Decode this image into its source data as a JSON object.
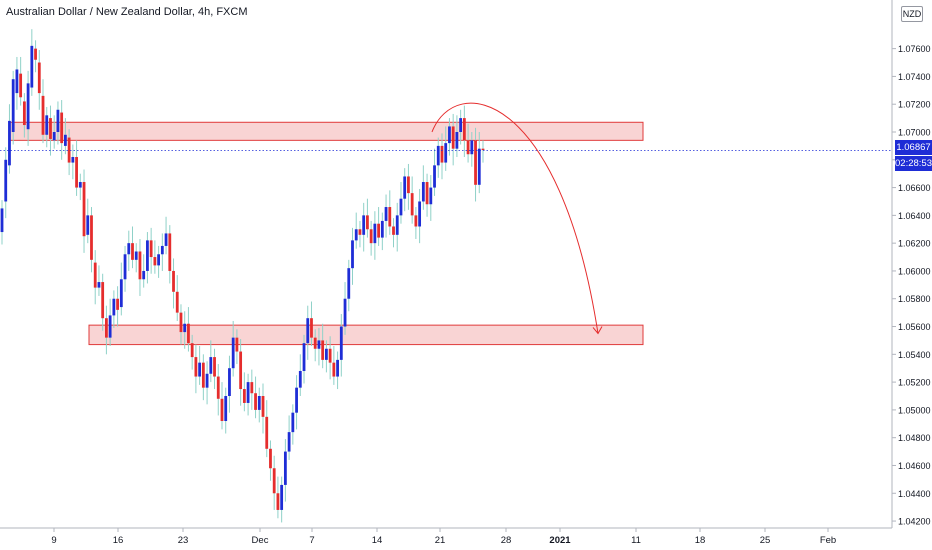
{
  "header": {
    "title": "Australian Dollar / New Zealand Dollar, 4h, FXCM",
    "currency": "NZD"
  },
  "price_label": {
    "price": "1.06867",
    "countdown": "02:28:53"
  },
  "colors": {
    "up": "#1e2dd6",
    "down": "#e52d2d",
    "wick": "#8fd1c8",
    "zone_fill": "#f7c6c6",
    "zone_stroke": "#e03a3a",
    "arrow": "#e52d2d",
    "price_line": "#1e2dd6"
  },
  "chart_data": {
    "type": "candlestick",
    "title": "Australian Dollar / New Zealand Dollar, 4h, FXCM",
    "y_axis": {
      "range": [
        1.0415,
        1.0795
      ],
      "ticks": [
        "1.07600",
        "1.07400",
        "1.07200",
        "1.07000",
        "1.06800",
        "1.06600",
        "1.06400",
        "1.06200",
        "1.06000",
        "1.05800",
        "1.05600",
        "1.05400",
        "1.05200",
        "1.05000",
        "1.04800",
        "1.04600",
        "1.04400",
        "1.04200"
      ]
    },
    "x_axis": {
      "ticks": [
        "9",
        "16",
        "23",
        "Dec",
        "7",
        "14",
        "21",
        "28",
        "2021",
        "11",
        "18",
        "25",
        "Feb"
      ]
    },
    "grid": false,
    "zones": [
      {
        "name": "resistance",
        "from": 1.0694,
        "to": 1.0707
      },
      {
        "name": "support",
        "from": 1.0547,
        "to": 1.0561
      }
    ],
    "arrow": {
      "from": 1.07,
      "peak": 1.0727,
      "to": 1.0555
    },
    "path": [
      [
        1.0628,
        1.0645
      ],
      [
        1.065,
        1.068
      ],
      [
        1.0676,
        1.0708
      ],
      [
        1.07,
        1.0738
      ],
      [
        1.0728,
        1.0745
      ],
      [
        1.0742,
        1.0725
      ],
      [
        1.0722,
        1.0705
      ],
      [
        1.0702,
        1.0735
      ],
      [
        1.0732,
        1.0762
      ],
      [
        1.076,
        1.0752
      ],
      [
        1.075,
        1.0728
      ],
      [
        1.0726,
        1.0698
      ],
      [
        1.0698,
        1.0712
      ],
      [
        1.071,
        1.0695
      ],
      [
        1.0694,
        1.07
      ],
      [
        1.07,
        1.0716
      ],
      [
        1.0714,
        1.0692
      ],
      [
        1.069,
        1.0698
      ],
      [
        1.0696,
        1.0678
      ],
      [
        1.0678,
        1.0682
      ],
      [
        1.0682,
        1.066
      ],
      [
        1.066,
        1.0664
      ],
      [
        1.0664,
        1.0625
      ],
      [
        1.0626,
        1.064
      ],
      [
        1.064,
        1.0608
      ],
      [
        1.0606,
        1.0588
      ],
      [
        1.0588,
        1.0592
      ],
      [
        1.0592,
        1.0566
      ],
      [
        1.0566,
        1.0552
      ],
      [
        1.0552,
        1.0568
      ],
      [
        1.0568,
        1.058
      ],
      [
        1.058,
        1.0572
      ],
      [
        1.0574,
        1.0594
      ],
      [
        1.0594,
        1.0612
      ],
      [
        1.0612,
        1.062
      ],
      [
        1.062,
        1.0608
      ],
      [
        1.0608,
        1.0614
      ],
      [
        1.0614,
        1.0594
      ],
      [
        1.0594,
        1.06
      ],
      [
        1.06,
        1.0622
      ],
      [
        1.0622,
        1.061
      ],
      [
        1.061,
        1.0604
      ],
      [
        1.0604,
        1.0612
      ],
      [
        1.0612,
        1.0618
      ],
      [
        1.0618,
        1.0627
      ],
      [
        1.0627,
        1.06
      ],
      [
        1.06,
        1.0585
      ],
      [
        1.0585,
        1.057
      ],
      [
        1.057,
        1.0556
      ],
      [
        1.0556,
        1.0562
      ],
      [
        1.0562,
        1.0548
      ],
      [
        1.0548,
        1.0538
      ],
      [
        1.0538,
        1.0524
      ],
      [
        1.0524,
        1.0534
      ],
      [
        1.0534,
        1.0516
      ],
      [
        1.0516,
        1.0526
      ],
      [
        1.0526,
        1.0538
      ],
      [
        1.0538,
        1.0524
      ],
      [
        1.0524,
        1.0508
      ],
      [
        1.0508,
        1.0492
      ],
      [
        1.0492,
        1.051
      ],
      [
        1.051,
        1.053
      ],
      [
        1.053,
        1.0552
      ],
      [
        1.0552,
        1.0542
      ],
      [
        1.0542,
        1.0515
      ],
      [
        1.0515,
        1.0505
      ],
      [
        1.0505,
        1.052
      ],
      [
        1.052,
        1.0512
      ],
      [
        1.0512,
        1.05
      ],
      [
        1.05,
        1.051
      ],
      [
        1.051,
        1.0495
      ],
      [
        1.0495,
        1.0472
      ],
      [
        1.0472,
        1.0458
      ],
      [
        1.0458,
        1.044
      ],
      [
        1.044,
        1.0428
      ],
      [
        1.0428,
        1.0446
      ],
      [
        1.0446,
        1.047
      ],
      [
        1.047,
        1.0484
      ],
      [
        1.0484,
        1.0498
      ],
      [
        1.0498,
        1.0516
      ],
      [
        1.0516,
        1.0528
      ],
      [
        1.0528,
        1.0548
      ],
      [
        1.0548,
        1.0566
      ],
      [
        1.0566,
        1.0552
      ],
      [
        1.0552,
        1.0544
      ],
      [
        1.0544,
        1.055
      ],
      [
        1.055,
        1.0536
      ],
      [
        1.0536,
        1.0544
      ],
      [
        1.0544,
        1.0534
      ],
      [
        1.0534,
        1.0524
      ],
      [
        1.0524,
        1.0536
      ],
      [
        1.0536,
        1.056
      ],
      [
        1.056,
        1.058
      ],
      [
        1.058,
        1.0602
      ],
      [
        1.0602,
        1.0622
      ],
      [
        1.0622,
        1.063
      ],
      [
        1.063,
        1.0626
      ],
      [
        1.0626,
        1.064
      ],
      [
        1.064,
        1.063
      ],
      [
        1.063,
        1.062
      ],
      [
        1.062,
        1.0634
      ],
      [
        1.0634,
        1.0624
      ],
      [
        1.0624,
        1.0636
      ],
      [
        1.0636,
        1.0646
      ],
      [
        1.0646,
        1.0632
      ],
      [
        1.0632,
        1.0626
      ],
      [
        1.0626,
        1.064
      ],
      [
        1.064,
        1.0652
      ],
      [
        1.0652,
        1.0668
      ],
      [
        1.0668,
        1.0656
      ],
      [
        1.0656,
        1.064
      ],
      [
        1.064,
        1.0632
      ],
      [
        1.0632,
        1.065
      ],
      [
        1.065,
        1.0664
      ],
      [
        1.0664,
        1.0648
      ],
      [
        1.0648,
        1.066
      ],
      [
        1.066,
        1.0676
      ],
      [
        1.0676,
        1.069
      ],
      [
        1.069,
        1.0678
      ],
      [
        1.0678,
        1.0692
      ],
      [
        1.0692,
        1.0704
      ],
      [
        1.0704,
        1.0688
      ],
      [
        1.0688,
        1.07
      ],
      [
        1.07,
        1.071
      ],
      [
        1.071,
        1.0694
      ],
      [
        1.0694,
        1.0684
      ],
      [
        1.0684,
        1.0694
      ],
      [
        1.0694,
        1.0662
      ],
      [
        1.0662,
        1.0688
      ],
      [
        1.0688,
        1.0687
      ]
    ]
  }
}
